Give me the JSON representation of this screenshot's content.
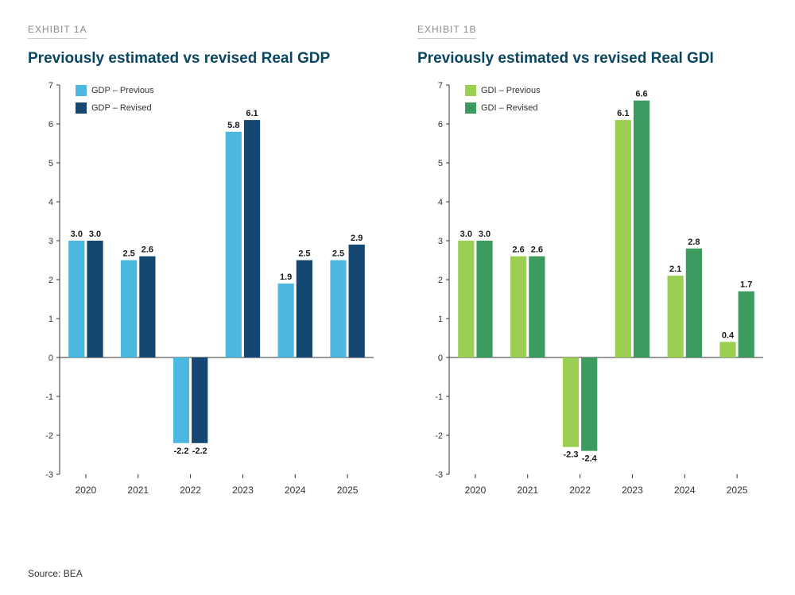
{
  "source": "Source: BEA",
  "axis": {
    "ylim": [
      -3,
      7
    ],
    "ytick_step": 1,
    "axis_color": "#333333",
    "tick_color": "#333333",
    "tick_fontsize": 11,
    "xlabel_fontsize": 12
  },
  "chart_left": {
    "exhibit": "EXHIBIT 1A",
    "title": "Previously estimated vs revised Real GDP",
    "type": "bar",
    "categories": [
      "2020",
      "2021",
      "2022",
      "2023",
      "2024",
      "2025"
    ],
    "series": [
      {
        "name": "GDP – Previous",
        "color": "#4cb8e0",
        "values": [
          3.0,
          2.5,
          -2.2,
          5.8,
          1.9,
          2.5
        ]
      },
      {
        "name": "GDP – Revised",
        "color": "#144872",
        "values": [
          3.0,
          2.6,
          -2.2,
          6.1,
          2.5,
          2.9
        ]
      }
    ],
    "label_decimals": 1,
    "background_color": "#ffffff"
  },
  "chart_right": {
    "exhibit": "EXHIBIT 1B",
    "title": "Previously estimated vs revised Real GDI",
    "type": "bar",
    "categories": [
      "2020",
      "2021",
      "2022",
      "2023",
      "2024",
      "2025"
    ],
    "series": [
      {
        "name": "GDI – Previous",
        "color": "#9bcf52",
        "values": [
          3.0,
          2.6,
          -2.3,
          6.1,
          2.1,
          0.4
        ]
      },
      {
        "name": "GDI – Revised",
        "color": "#3c9b5f",
        "values": [
          3.0,
          2.6,
          -2.4,
          6.6,
          2.8,
          1.7
        ]
      }
    ],
    "label_decimals": 1,
    "background_color": "#ffffff"
  }
}
